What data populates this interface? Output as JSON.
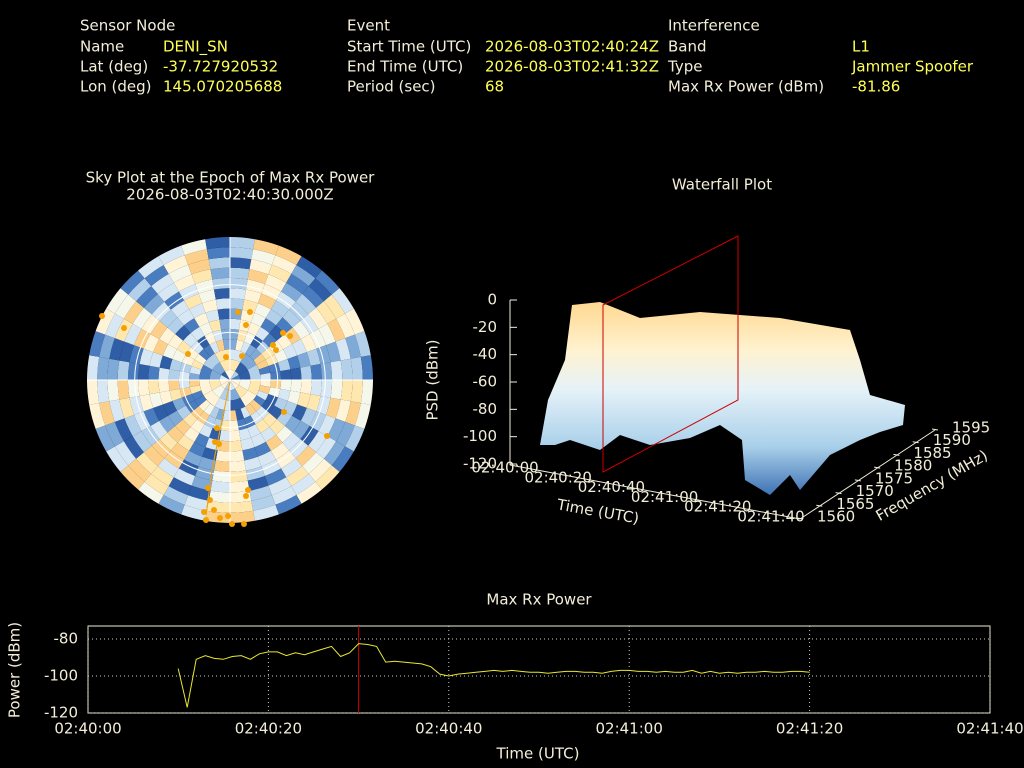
{
  "header": {
    "sensor_node": {
      "title": "Sensor Node",
      "rows": [
        [
          "Name",
          "DENI_SN"
        ],
        [
          "Lat (deg)",
          "-37.727920532"
        ],
        [
          "Lon (deg)",
          "145.070205688"
        ]
      ]
    },
    "event": {
      "title": "Event",
      "rows": [
        [
          "Start Time (UTC)",
          "2026-08-03T02:40:24Z"
        ],
        [
          "End Time (UTC)",
          "2026-08-03T02:41:32Z"
        ],
        [
          "Period (sec)",
          "68"
        ]
      ]
    },
    "interference": {
      "title": "Interference",
      "rows": [
        [
          "Band",
          "L1"
        ],
        [
          "Type",
          "Jammer  Spoofer"
        ],
        [
          "Max Rx Power (dBm)",
          "-81.86"
        ]
      ]
    }
  },
  "sky_plot": {
    "title": "Sky Plot at the Epoch of Max Rx Power",
    "subtitle": "2026-08-03T02:40:30.000Z"
  },
  "waterfall": {
    "title": "Waterfall Plot",
    "zlabel": "PSD (dBm)",
    "zticks": [
      0,
      -20,
      -40,
      -60,
      -80,
      -100,
      -120
    ],
    "time_ticks": [
      "02:40:00",
      "02:40:20",
      "02:40:40",
      "02:41:00",
      "02:41:20",
      "02:41:40"
    ],
    "xlabel": "Time (UTC)",
    "freq_ticks": [
      1560,
      1565,
      1570,
      1575,
      1580,
      1585,
      1590,
      1595
    ],
    "ylabel": "Frequency (MHz)"
  },
  "chart_data": [
    {
      "type": "line",
      "title": "Max Rx Power",
      "xlabel": "Time (UTC)",
      "ylabel": "Power (dBm)",
      "x": [
        "02:40:10",
        "02:40:11",
        "02:40:12",
        "02:40:13",
        "02:40:14",
        "02:40:15",
        "02:40:16",
        "02:40:17",
        "02:40:18",
        "02:40:19",
        "02:40:20",
        "02:40:21",
        "02:40:22",
        "02:40:23",
        "02:40:24",
        "02:40:25",
        "02:40:26",
        "02:40:27",
        "02:40:28",
        "02:40:29",
        "02:40:30",
        "02:40:31",
        "02:40:32",
        "02:40:33",
        "02:40:34",
        "02:40:35",
        "02:40:36",
        "02:40:37",
        "02:40:38",
        "02:40:39",
        "02:40:40",
        "02:40:41",
        "02:40:42",
        "02:40:43",
        "02:40:44",
        "02:40:45",
        "02:40:46",
        "02:40:47",
        "02:40:48",
        "02:40:49",
        "02:40:50",
        "02:40:51",
        "02:40:52",
        "02:40:53",
        "02:40:54",
        "02:40:55",
        "02:40:56",
        "02:40:57",
        "02:40:58",
        "02:40:59",
        "02:41:00",
        "02:41:01",
        "02:41:02",
        "02:41:03",
        "02:41:04",
        "02:41:05",
        "02:41:06",
        "02:41:07",
        "02:41:08",
        "02:41:09",
        "02:41:10",
        "02:41:11",
        "02:41:12",
        "02:41:13",
        "02:41:14",
        "02:41:15",
        "02:41:16",
        "02:41:17",
        "02:41:18",
        "02:41:19",
        "02:41:20"
      ],
      "values": [
        -96,
        -117,
        -91,
        -89,
        -90.5,
        -91,
        -89.5,
        -89,
        -91,
        -88,
        -87,
        -87,
        -89,
        -87.5,
        -88.5,
        -87,
        -85.5,
        -84,
        -89.5,
        -87.5,
        -82.5,
        -83,
        -84,
        -92.5,
        -92,
        -92.5,
        -93,
        -93.5,
        -95,
        -99,
        -100,
        -99,
        -98.5,
        -98,
        -97.5,
        -97,
        -97.5,
        -97,
        -97.5,
        -98,
        -98,
        -98.5,
        -98,
        -97.5,
        -97.5,
        -98,
        -98,
        -98.5,
        -97.5,
        -97,
        -97,
        -97.5,
        -97.5,
        -98,
        -97.5,
        -98,
        -98,
        -97,
        -98.5,
        -97.5,
        -98.5,
        -98,
        -98.5,
        -98,
        -98,
        -97.5,
        -98,
        -98,
        -97.5,
        -97.5,
        -98
      ],
      "color": "#e8e830",
      "marker": "02:40:30",
      "marker_color": "#cc0000",
      "xlim": [
        "02:40:00",
        "02:41:40"
      ],
      "xticks": [
        "02:40:00",
        "02:40:20",
        "02:40:40",
        "02:41:00",
        "02:41:20",
        "02:41:40"
      ],
      "ylim": [
        -120,
        -73
      ],
      "yticks": [
        -80,
        -100,
        -120
      ],
      "grid": true
    }
  ]
}
